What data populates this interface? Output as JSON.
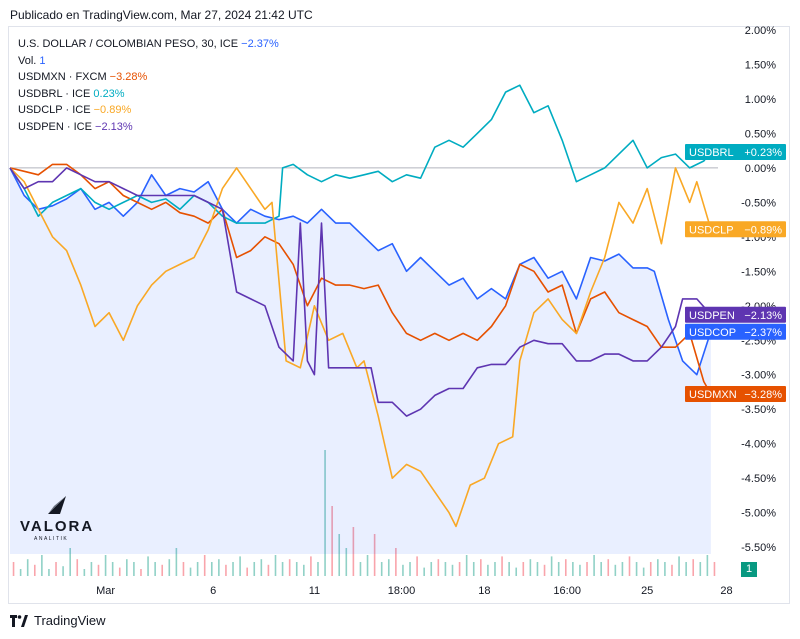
{
  "header": {
    "published": "Publicado en TradingView.com, Mar 27, 2024 21:42 UTC"
  },
  "legend": {
    "main": {
      "name": "U.S. DOLLAR / COLOMBIAN PESO, 30, ICE",
      "value": "−2.37%",
      "color": "#2962ff"
    },
    "vol": {
      "name": "Vol.",
      "value": "1",
      "color": "#2962ff"
    },
    "items": [
      {
        "name": "USDMXN · FXCM",
        "value": "−3.28%",
        "color": "#e65100"
      },
      {
        "name": "USDBRL · ICE",
        "value": "0.23%",
        "color": "#00acc1"
      },
      {
        "name": "USDCLP · ICE",
        "value": "−0.89%",
        "color": "#f9a825"
      },
      {
        "name": "USDPEN · ICE",
        "value": "−2.13%",
        "color": "#5e35b1"
      }
    ]
  },
  "logo": {
    "wordmark": "VALORA",
    "sub": "ANALITIK"
  },
  "footer": {
    "brand": "TradingView"
  },
  "badge": "1",
  "chart_data": {
    "type": "line",
    "ylim": [
      -5.6,
      2.0
    ],
    "y_ticks": [
      "2.00%",
      "1.50%",
      "1.00%",
      "0.50%",
      "0.00%",
      "-0.50%",
      "-1.00%",
      "-1.50%",
      "-2.00%",
      "-2.50%",
      "-3.00%",
      "-3.50%",
      "-4.00%",
      "-4.50%",
      "-5.00%",
      "-5.50%"
    ],
    "y_tick_values": [
      2.0,
      1.5,
      1.0,
      0.5,
      0.0,
      -0.5,
      -1.0,
      -1.5,
      -2.0,
      -2.5,
      -3.0,
      -3.5,
      -4.0,
      -4.5,
      -5.0,
      -5.5
    ],
    "x_ticks": [
      {
        "label": "Mar",
        "t": 0.135
      },
      {
        "label": "6",
        "t": 0.287
      },
      {
        "label": "11",
        "t": 0.43
      },
      {
        "label": "18:00",
        "t": 0.553
      },
      {
        "label": "18",
        "t": 0.67
      },
      {
        "label": "16:00",
        "t": 0.787
      },
      {
        "label": "25",
        "t": 0.9
      },
      {
        "label": "28",
        "t": 1.012
      }
    ],
    "series": [
      {
        "name": "USDCOP",
        "label": "USDCOP",
        "value_label": "−2.37%",
        "last": -2.37,
        "color": "#2962ff",
        "fill": true,
        "points": [
          [
            0,
            0
          ],
          [
            0.02,
            -0.4
          ],
          [
            0.04,
            -0.6
          ],
          [
            0.06,
            -0.55
          ],
          [
            0.08,
            -0.45
          ],
          [
            0.1,
            -0.3
          ],
          [
            0.12,
            -0.6
          ],
          [
            0.14,
            -0.5
          ],
          [
            0.16,
            -0.7
          ],
          [
            0.18,
            -0.5
          ],
          [
            0.2,
            -0.1
          ],
          [
            0.22,
            -0.4
          ],
          [
            0.24,
            -0.3
          ],
          [
            0.26,
            -0.35
          ],
          [
            0.28,
            -0.2
          ],
          [
            0.3,
            -0.6
          ],
          [
            0.32,
            -0.8
          ],
          [
            0.34,
            -0.6
          ],
          [
            0.36,
            -0.7
          ],
          [
            0.38,
            -0.75
          ],
          [
            0.4,
            -0.7
          ],
          [
            0.42,
            -0.8
          ],
          [
            0.44,
            -0.6
          ],
          [
            0.46,
            -0.8
          ],
          [
            0.48,
            -0.8
          ],
          [
            0.5,
            -1.0
          ],
          [
            0.52,
            -1.2
          ],
          [
            0.54,
            -1.1
          ],
          [
            0.56,
            -1.5
          ],
          [
            0.58,
            -1.3
          ],
          [
            0.6,
            -1.5
          ],
          [
            0.62,
            -1.7
          ],
          [
            0.64,
            -1.6
          ],
          [
            0.66,
            -1.9
          ],
          [
            0.68,
            -1.75
          ],
          [
            0.7,
            -1.9
          ],
          [
            0.72,
            -1.4
          ],
          [
            0.74,
            -1.3
          ],
          [
            0.76,
            -1.6
          ],
          [
            0.78,
            -1.5
          ],
          [
            0.8,
            -1.9
          ],
          [
            0.82,
            -1.3
          ],
          [
            0.84,
            -1.35
          ],
          [
            0.86,
            -1.25
          ],
          [
            0.88,
            -1.45
          ],
          [
            0.9,
            -1.45
          ],
          [
            0.91,
            -1.5
          ],
          [
            0.93,
            -2.2
          ],
          [
            0.95,
            -2.8
          ],
          [
            0.97,
            -3.0
          ],
          [
            0.99,
            -2.37
          ]
        ]
      },
      {
        "name": "USDMXN",
        "label": "USDMXN",
        "value_label": "−3.28%",
        "last": -3.28,
        "color": "#e65100",
        "points": [
          [
            0,
            0
          ],
          [
            0.02,
            -0.05
          ],
          [
            0.04,
            -0.1
          ],
          [
            0.06,
            0.05
          ],
          [
            0.08,
            0.05
          ],
          [
            0.1,
            -0.1
          ],
          [
            0.12,
            -0.3
          ],
          [
            0.14,
            -0.2
          ],
          [
            0.16,
            -0.4
          ],
          [
            0.18,
            -0.5
          ],
          [
            0.2,
            -0.6
          ],
          [
            0.22,
            -0.5
          ],
          [
            0.24,
            -0.65
          ],
          [
            0.26,
            -0.7
          ],
          [
            0.28,
            -0.8
          ],
          [
            0.3,
            -0.6
          ],
          [
            0.32,
            -1.3
          ],
          [
            0.34,
            -1.2
          ],
          [
            0.36,
            -1.0
          ],
          [
            0.38,
            -1.1
          ],
          [
            0.4,
            -1.4
          ],
          [
            0.42,
            -2.0
          ],
          [
            0.44,
            -1.6
          ],
          [
            0.46,
            -1.7
          ],
          [
            0.48,
            -1.7
          ],
          [
            0.5,
            -1.75
          ],
          [
            0.52,
            -1.7
          ],
          [
            0.54,
            -2.1
          ],
          [
            0.56,
            -2.4
          ],
          [
            0.58,
            -2.5
          ],
          [
            0.6,
            -2.4
          ],
          [
            0.62,
            -2.5
          ],
          [
            0.64,
            -2.4
          ],
          [
            0.66,
            -2.5
          ],
          [
            0.68,
            -2.3
          ],
          [
            0.7,
            -2.0
          ],
          [
            0.72,
            -1.4
          ],
          [
            0.74,
            -1.5
          ],
          [
            0.76,
            -1.8
          ],
          [
            0.78,
            -1.7
          ],
          [
            0.8,
            -2.4
          ],
          [
            0.82,
            -1.9
          ],
          [
            0.84,
            -1.8
          ],
          [
            0.86,
            -2.1
          ],
          [
            0.88,
            -2.2
          ],
          [
            0.9,
            -2.3
          ],
          [
            0.92,
            -2.6
          ],
          [
            0.94,
            -2.6
          ],
          [
            0.96,
            -2.4
          ],
          [
            0.98,
            -3.1
          ],
          [
            0.99,
            -3.28
          ]
        ]
      },
      {
        "name": "USDBRL",
        "label": "USDBRL",
        "value_label": "+0.23%",
        "last": 0.23,
        "color": "#00acc1",
        "points": [
          [
            0,
            0
          ],
          [
            0.02,
            -0.3
          ],
          [
            0.04,
            -0.7
          ],
          [
            0.06,
            -0.5
          ],
          [
            0.08,
            -0.4
          ],
          [
            0.1,
            -0.3
          ],
          [
            0.12,
            -0.5
          ],
          [
            0.14,
            -0.6
          ],
          [
            0.16,
            -0.5
          ],
          [
            0.18,
            -0.4
          ],
          [
            0.2,
            -0.5
          ],
          [
            0.22,
            -0.45
          ],
          [
            0.24,
            -0.6
          ],
          [
            0.26,
            -0.4
          ],
          [
            0.28,
            -0.5
          ],
          [
            0.3,
            -0.7
          ],
          [
            0.32,
            -0.8
          ],
          [
            0.34,
            -0.8
          ],
          [
            0.36,
            -0.8
          ],
          [
            0.38,
            -0.7
          ],
          [
            0.385,
            0.0
          ],
          [
            0.4,
            0.05
          ],
          [
            0.42,
            -0.1
          ],
          [
            0.44,
            -0.2
          ],
          [
            0.46,
            -0.1
          ],
          [
            0.48,
            -0.15
          ],
          [
            0.5,
            -0.1
          ],
          [
            0.52,
            -0.05
          ],
          [
            0.54,
            -0.2
          ],
          [
            0.56,
            -0.1
          ],
          [
            0.58,
            -0.15
          ],
          [
            0.6,
            0.3
          ],
          [
            0.62,
            0.4
          ],
          [
            0.64,
            0.3
          ],
          [
            0.66,
            0.5
          ],
          [
            0.68,
            0.7
          ],
          [
            0.7,
            1.1
          ],
          [
            0.72,
            1.2
          ],
          [
            0.74,
            0.8
          ],
          [
            0.76,
            0.9
          ],
          [
            0.78,
            0.4
          ],
          [
            0.8,
            -0.2
          ],
          [
            0.82,
            -0.1
          ],
          [
            0.84,
            0.0
          ],
          [
            0.86,
            0.2
          ],
          [
            0.88,
            0.4
          ],
          [
            0.9,
            0.0
          ],
          [
            0.92,
            0.15
          ],
          [
            0.94,
            0.2
          ],
          [
            0.96,
            0.0
          ],
          [
            0.98,
            0.1
          ],
          [
            0.99,
            0.23
          ]
        ]
      },
      {
        "name": "USDCLP",
        "label": "USDCLP",
        "value_label": "−0.89%",
        "last": -0.89,
        "color": "#f9a825",
        "points": [
          [
            0,
            0
          ],
          [
            0.02,
            -0.2
          ],
          [
            0.04,
            -0.6
          ],
          [
            0.06,
            -1.0
          ],
          [
            0.08,
            -1.2
          ],
          [
            0.1,
            -1.7
          ],
          [
            0.12,
            -2.3
          ],
          [
            0.14,
            -2.1
          ],
          [
            0.16,
            -2.5
          ],
          [
            0.18,
            -2.0
          ],
          [
            0.2,
            -1.7
          ],
          [
            0.22,
            -1.5
          ],
          [
            0.24,
            -1.4
          ],
          [
            0.26,
            -1.3
          ],
          [
            0.28,
            -0.9
          ],
          [
            0.3,
            -0.3
          ],
          [
            0.32,
            0.0
          ],
          [
            0.34,
            -0.3
          ],
          [
            0.36,
            -0.6
          ],
          [
            0.37,
            -0.5
          ],
          [
            0.39,
            -2.8
          ],
          [
            0.41,
            -2.9
          ],
          [
            0.43,
            -2.0
          ],
          [
            0.45,
            -2.5
          ],
          [
            0.47,
            -2.4
          ],
          [
            0.49,
            -2.9
          ],
          [
            0.5,
            -2.8
          ],
          [
            0.52,
            -3.6
          ],
          [
            0.54,
            -4.5
          ],
          [
            0.56,
            -4.3
          ],
          [
            0.58,
            -4.4
          ],
          [
            0.6,
            -4.7
          ],
          [
            0.62,
            -5.0
          ],
          [
            0.63,
            -5.2
          ],
          [
            0.65,
            -4.6
          ],
          [
            0.67,
            -4.5
          ],
          [
            0.69,
            -4.0
          ],
          [
            0.71,
            -3.9
          ],
          [
            0.72,
            -2.8
          ],
          [
            0.74,
            -2.1
          ],
          [
            0.76,
            -1.9
          ],
          [
            0.78,
            -2.2
          ],
          [
            0.8,
            -2.4
          ],
          [
            0.82,
            -1.8
          ],
          [
            0.84,
            -1.3
          ],
          [
            0.86,
            -0.5
          ],
          [
            0.88,
            -0.8
          ],
          [
            0.9,
            -0.3
          ],
          [
            0.92,
            -1.1
          ],
          [
            0.94,
            0.0
          ],
          [
            0.96,
            -0.5
          ],
          [
            0.97,
            -0.2
          ],
          [
            0.99,
            -0.89
          ]
        ]
      },
      {
        "name": "USDPEN",
        "label": "USDPEN",
        "value_label": "−2.13%",
        "last": -2.13,
        "color": "#5e35b1",
        "points": [
          [
            0,
            0
          ],
          [
            0.02,
            -0.3
          ],
          [
            0.04,
            -0.2
          ],
          [
            0.06,
            -0.2
          ],
          [
            0.08,
            0.0
          ],
          [
            0.1,
            -0.1
          ],
          [
            0.12,
            -0.2
          ],
          [
            0.14,
            -0.2
          ],
          [
            0.16,
            -0.3
          ],
          [
            0.18,
            -0.4
          ],
          [
            0.2,
            -0.4
          ],
          [
            0.22,
            -0.4
          ],
          [
            0.24,
            -0.4
          ],
          [
            0.26,
            -0.4
          ],
          [
            0.28,
            -0.5
          ],
          [
            0.3,
            -0.6
          ],
          [
            0.32,
            -1.8
          ],
          [
            0.34,
            -1.9
          ],
          [
            0.36,
            -2.0
          ],
          [
            0.38,
            -2.6
          ],
          [
            0.4,
            -2.8
          ],
          [
            0.41,
            -0.8
          ],
          [
            0.42,
            -2.8
          ],
          [
            0.43,
            -3.0
          ],
          [
            0.44,
            -0.8
          ],
          [
            0.45,
            -2.9
          ],
          [
            0.47,
            -2.9
          ],
          [
            0.49,
            -2.9
          ],
          [
            0.5,
            -2.9
          ],
          [
            0.51,
            -2.9
          ],
          [
            0.52,
            -3.4
          ],
          [
            0.54,
            -3.4
          ],
          [
            0.56,
            -3.6
          ],
          [
            0.58,
            -3.5
          ],
          [
            0.6,
            -3.3
          ],
          [
            0.62,
            -3.2
          ],
          [
            0.64,
            -3.2
          ],
          [
            0.66,
            -2.9
          ],
          [
            0.68,
            -2.85
          ],
          [
            0.7,
            -2.85
          ],
          [
            0.72,
            -2.6
          ],
          [
            0.74,
            -2.5
          ],
          [
            0.76,
            -2.55
          ],
          [
            0.78,
            -2.55
          ],
          [
            0.8,
            -2.8
          ],
          [
            0.82,
            -2.8
          ],
          [
            0.84,
            -2.7
          ],
          [
            0.86,
            -2.7
          ],
          [
            0.88,
            -2.8
          ],
          [
            0.9,
            -2.8
          ],
          [
            0.92,
            -2.6
          ],
          [
            0.94,
            -2.3
          ],
          [
            0.95,
            -1.9
          ],
          [
            0.97,
            -1.9
          ],
          [
            0.99,
            -2.13
          ]
        ]
      }
    ],
    "volume": [
      0.1,
      0.05,
      0.12,
      0.08,
      0.15,
      0.05,
      0.1,
      0.07,
      0.2,
      0.12,
      0.05,
      0.1,
      0.08,
      0.15,
      0.1,
      0.06,
      0.12,
      0.1,
      0.05,
      0.14,
      0.1,
      0.08,
      0.12,
      0.2,
      0.1,
      0.06,
      0.1,
      0.15,
      0.1,
      0.12,
      0.08,
      0.1,
      0.14,
      0.06,
      0.1,
      0.12,
      0.08,
      0.15,
      0.1,
      0.12,
      0.1,
      0.08,
      0.14,
      0.1,
      0.9,
      0.5,
      0.3,
      0.2,
      0.35,
      0.1,
      0.15,
      0.3,
      0.1,
      0.12,
      0.2,
      0.08,
      0.1,
      0.14,
      0.06,
      0.1,
      0.12,
      0.1,
      0.08,
      0.1,
      0.15,
      0.1,
      0.12,
      0.08,
      0.1,
      0.14,
      0.1,
      0.06,
      0.1,
      0.12,
      0.1,
      0.08,
      0.14,
      0.1,
      0.12,
      0.1,
      0.08,
      0.1,
      0.15,
      0.1,
      0.12,
      0.08,
      0.1,
      0.14,
      0.1,
      0.06,
      0.1,
      0.12,
      0.1,
      0.08,
      0.14,
      0.1,
      0.12,
      0.1,
      0.15,
      0.1
    ]
  }
}
